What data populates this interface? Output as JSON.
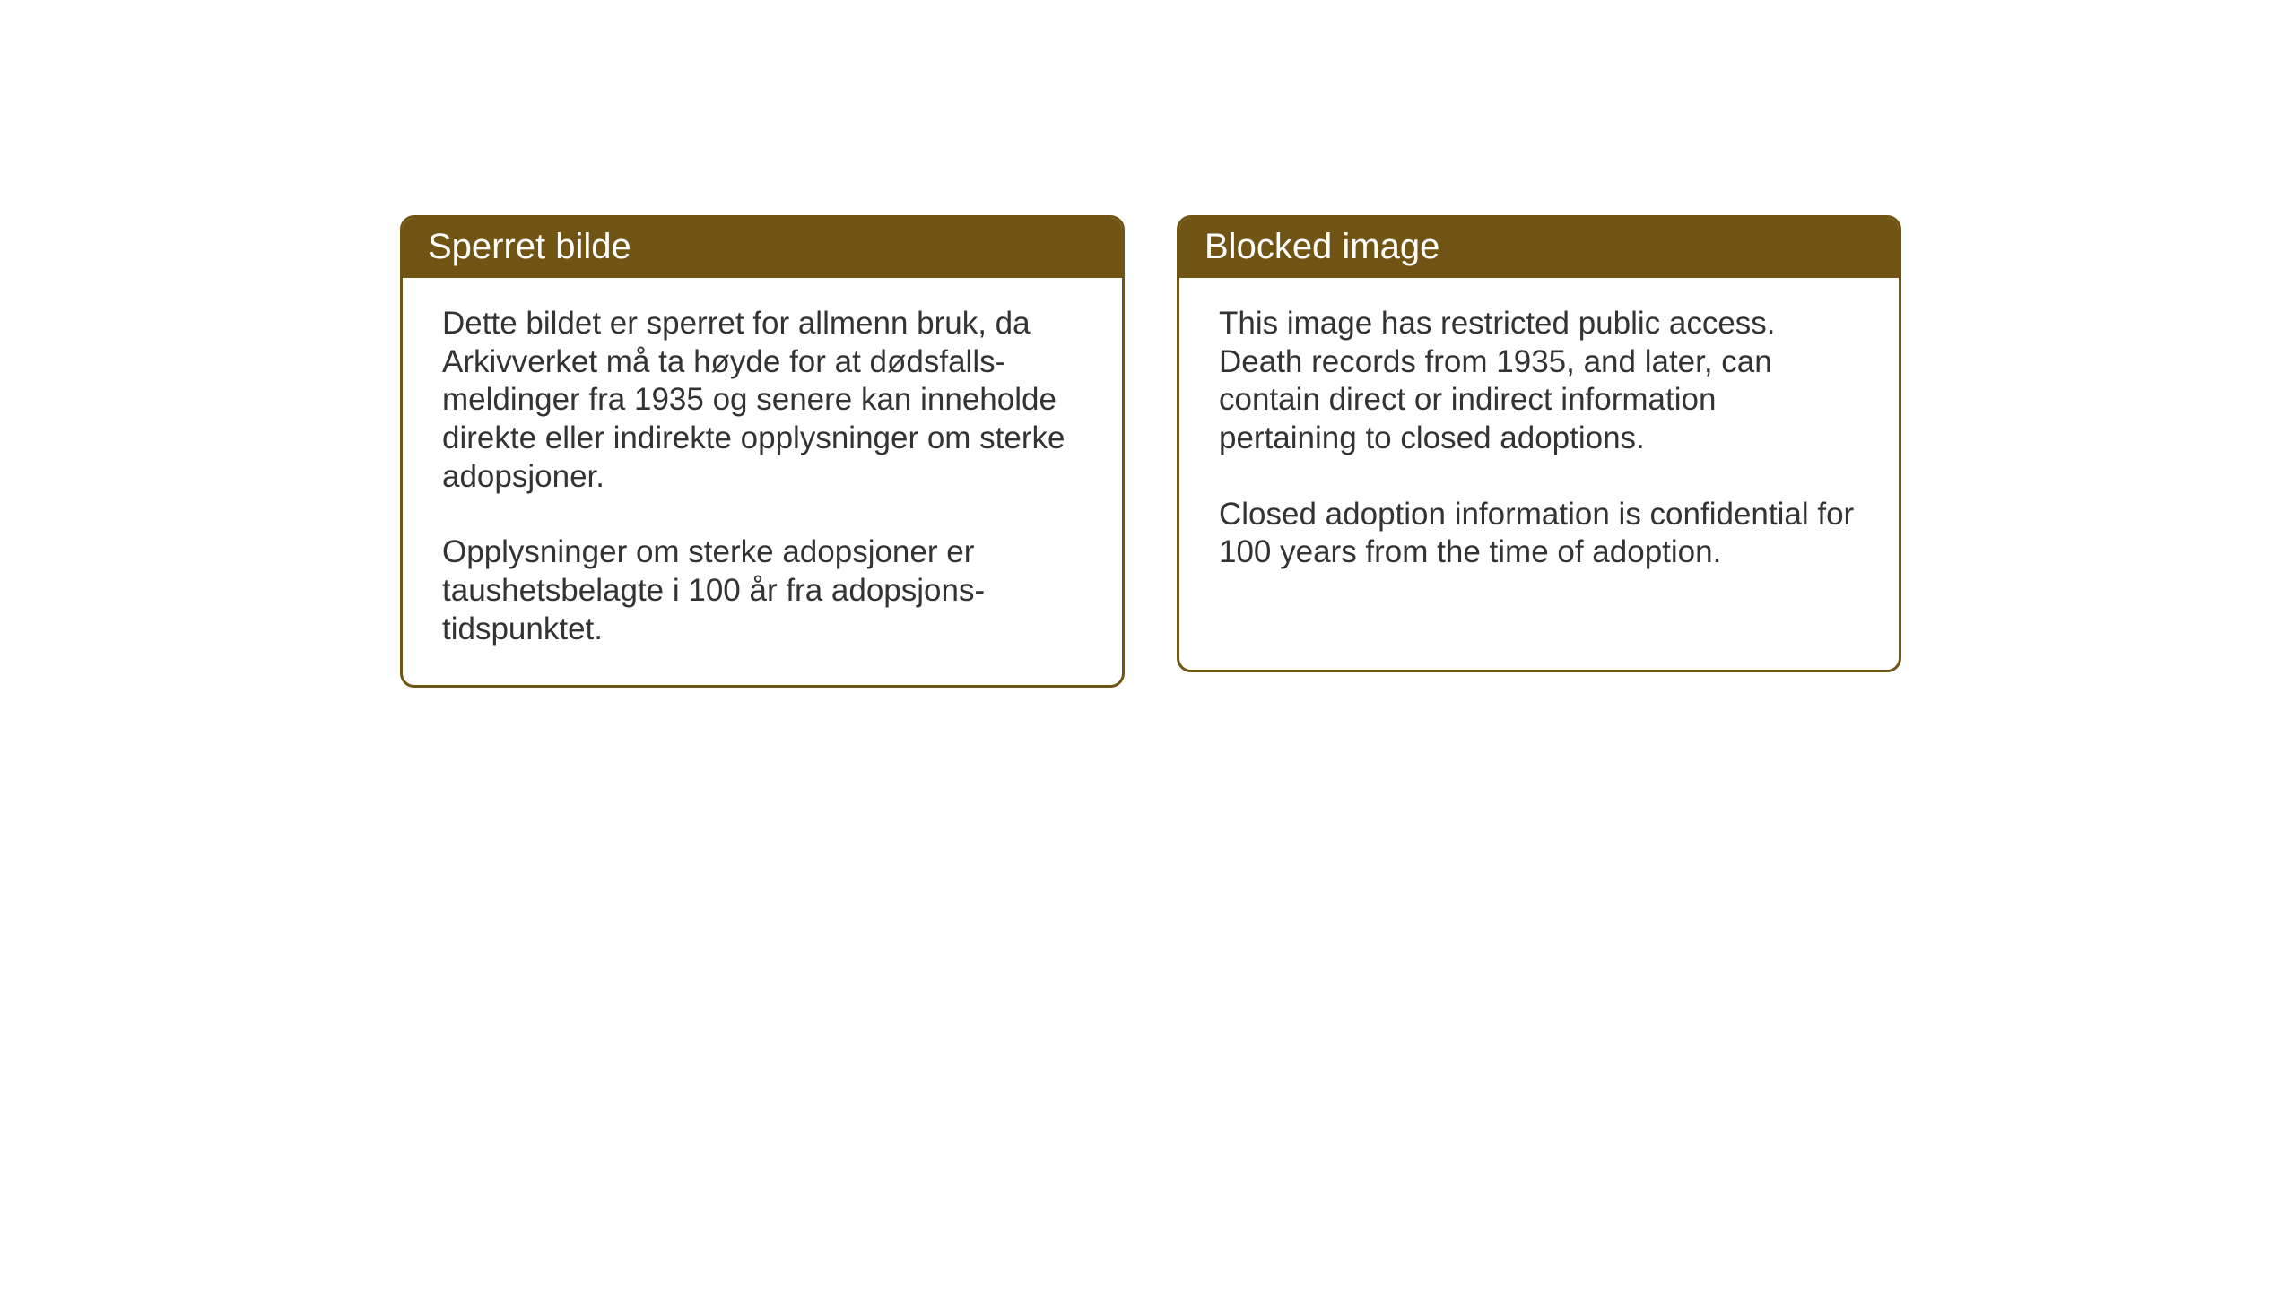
{
  "cards": {
    "norwegian": {
      "title": "Sperret bilde",
      "paragraph1": "Dette bildet er sperret for allmenn bruk, da Arkivverket må ta høyde for at dødsfalls-meldinger fra 1935 og senere kan inneholde direkte eller indirekte opplysninger om sterke adopsjoner.",
      "paragraph2": "Opplysninger om sterke adopsjoner er taushetsbelagte i 100 år fra adopsjons-tidspunktet."
    },
    "english": {
      "title": "Blocked image",
      "paragraph1": "This image has restricted public access. Death records from 1935, and later, can contain direct or indirect information pertaining to closed adoptions.",
      "paragraph2": "Closed adoption information is confidential for 100 years from the time of adoption."
    }
  },
  "styling": {
    "header_bg_color": "#705413",
    "header_text_color": "#ffffff",
    "body_text_color": "#333333",
    "border_color": "#705413",
    "background_color": "#ffffff",
    "header_fontsize": 40,
    "body_fontsize": 35,
    "border_radius": 16,
    "border_width": 3
  }
}
